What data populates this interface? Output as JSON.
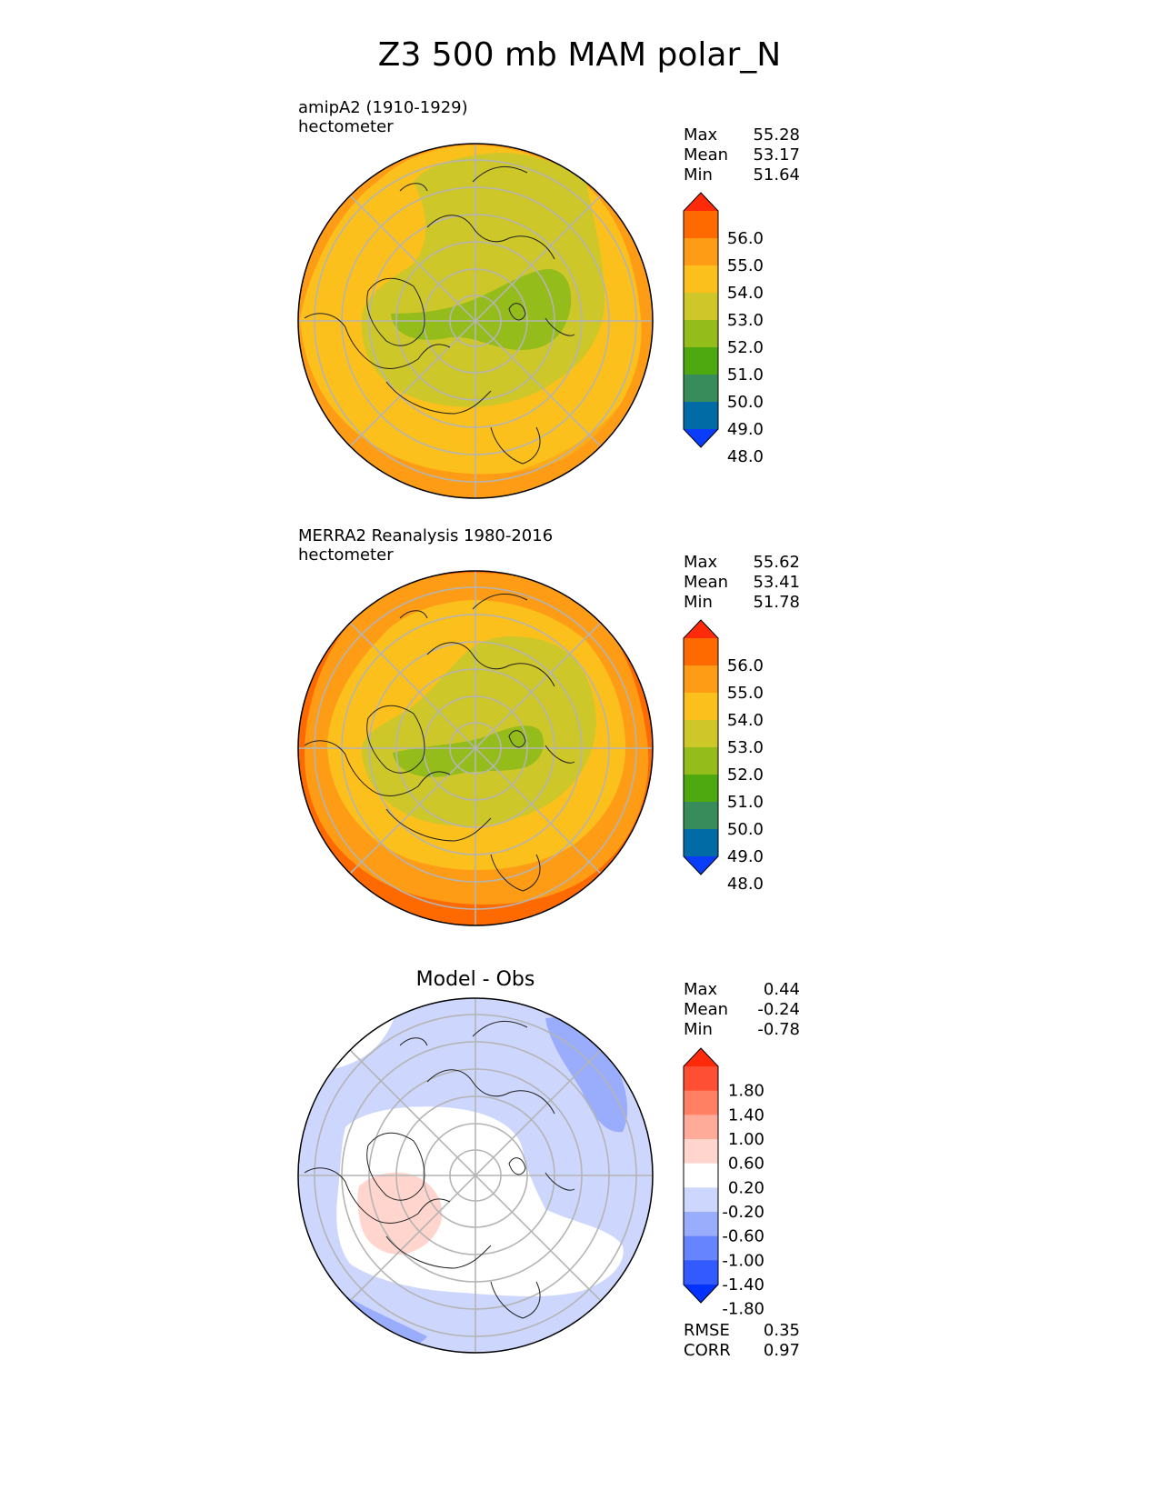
{
  "title": "Z3 500 mb MAM polar_N",
  "panels": [
    {
      "title_line1": "amipA2 (1910-1929)",
      "title_line2": "hectometer",
      "stats": [
        {
          "label": "Max",
          "value": "55.28"
        },
        {
          "label": "Mean",
          "value": "53.17"
        },
        {
          "label": "Min",
          "value": "51.64"
        }
      ]
    },
    {
      "title_line1": "MERRA2 Reanalysis 1980-2016",
      "title_line2": "hectometer",
      "stats": [
        {
          "label": "Max",
          "value": "55.62"
        },
        {
          "label": "Mean",
          "value": "53.41"
        },
        {
          "label": "Min",
          "value": "51.78"
        }
      ]
    },
    {
      "title": "Model - Obs",
      "stats": [
        {
          "label": "Max",
          "value": "0.44"
        },
        {
          "label": "Mean",
          "value": "-0.24"
        },
        {
          "label": "Min",
          "value": "-0.78"
        }
      ],
      "extra_stats": [
        {
          "label": "RMSE",
          "value": "0.35"
        },
        {
          "label": "CORR",
          "value": "0.97"
        }
      ]
    }
  ],
  "colorbar_field": {
    "ticks": [
      "56.0",
      "55.0",
      "54.0",
      "53.0",
      "52.0",
      "51.0",
      "50.0",
      "49.0",
      "48.0"
    ],
    "colors": [
      "#ff2a0a",
      "#ff6a00",
      "#ff9c16",
      "#fcc01c",
      "#cec72a",
      "#94bc1a",
      "#4ea80f",
      "#388b5a",
      "#006ba4",
      "#0a3dfa"
    ]
  },
  "colorbar_diff": {
    "ticks": [
      "1.80",
      "1.40",
      "1.00",
      "0.60",
      "0.20",
      "-0.20",
      "-0.60",
      "-1.00",
      "-1.40",
      "-1.80"
    ],
    "colors": [
      "#ff2a0a",
      "#fe4f35",
      "#ff8063",
      "#ffab99",
      "#ffd5cd",
      "#ffffff",
      "#cdd6fd",
      "#9aadfd",
      "#6684fd",
      "#335aff",
      "#0331ff"
    ]
  },
  "map_colors": {
    "outer_orange": "#ff9c16",
    "deep_orange": "#ff6a00",
    "yellow": "#fcc01c",
    "olive": "#cec72a",
    "green": "#94bc1a",
    "diff_blue_light": "#cdd6fd",
    "diff_blue_mid": "#9aadfd",
    "diff_white": "#ffffff",
    "diff_pink": "#ffd5cd"
  }
}
